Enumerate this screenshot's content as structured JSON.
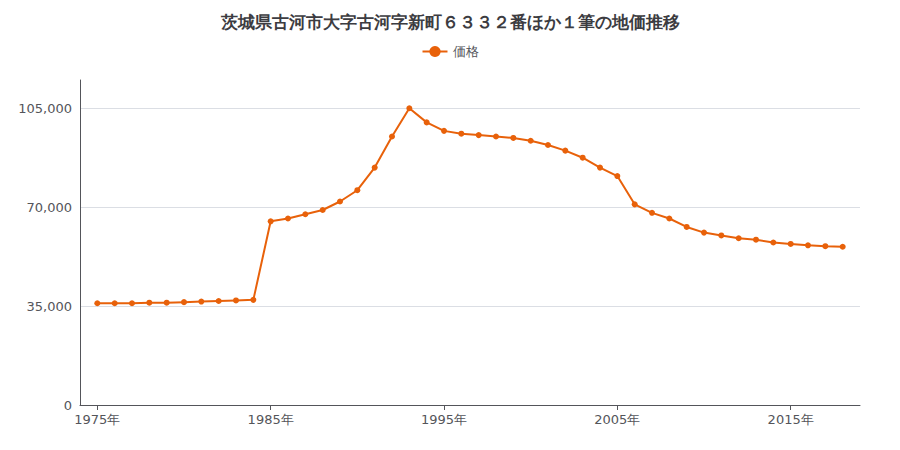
{
  "chart_data": {
    "type": "line",
    "title": "茨城県古河市大字古河字新町６３３２番ほか１筆の地価推移",
    "x": [
      1975,
      1976,
      1977,
      1978,
      1979,
      1980,
      1981,
      1982,
      1983,
      1984,
      1985,
      1986,
      1987,
      1988,
      1989,
      1990,
      1991,
      1992,
      1993,
      1994,
      1995,
      1996,
      1997,
      1998,
      1999,
      2000,
      2001,
      2002,
      2003,
      2004,
      2005,
      2006,
      2007,
      2008,
      2009,
      2010,
      2011,
      2012,
      2013,
      2014,
      2015,
      2016,
      2017,
      2018
    ],
    "series": [
      {
        "name": "価格",
        "color": "#e8610a",
        "values": [
          36000,
          36000,
          36000,
          36200,
          36200,
          36400,
          36600,
          36800,
          37000,
          37200,
          65000,
          66000,
          67500,
          69000,
          72000,
          76000,
          84000,
          95000,
          105000,
          100000,
          97000,
          96000,
          95500,
          95000,
          94500,
          93500,
          92000,
          90000,
          87500,
          84000,
          81000,
          71000,
          68000,
          66000,
          63000,
          61000,
          60000,
          59000,
          58500,
          57500,
          57000,
          56500,
          56200,
          56000
        ]
      }
    ],
    "xlim": [
      1974,
      2019
    ],
    "xticks": [
      {
        "value": 1975,
        "label": "1975年"
      },
      {
        "value": 1985,
        "label": "1985年"
      },
      {
        "value": 1995,
        "label": "1995年"
      },
      {
        "value": 2005,
        "label": "2005年"
      },
      {
        "value": 2015,
        "label": "2015年"
      }
    ],
    "ylim": [
      0,
      115000
    ],
    "yticks": [
      0,
      {
        "value": 35000,
        "label": "35,000"
      },
      {
        "value": 70000,
        "label": "70,000"
      },
      {
        "value": 105000,
        "label": "105,000"
      }
    ],
    "grid": true,
    "legend": "top",
    "marker": "circle"
  }
}
